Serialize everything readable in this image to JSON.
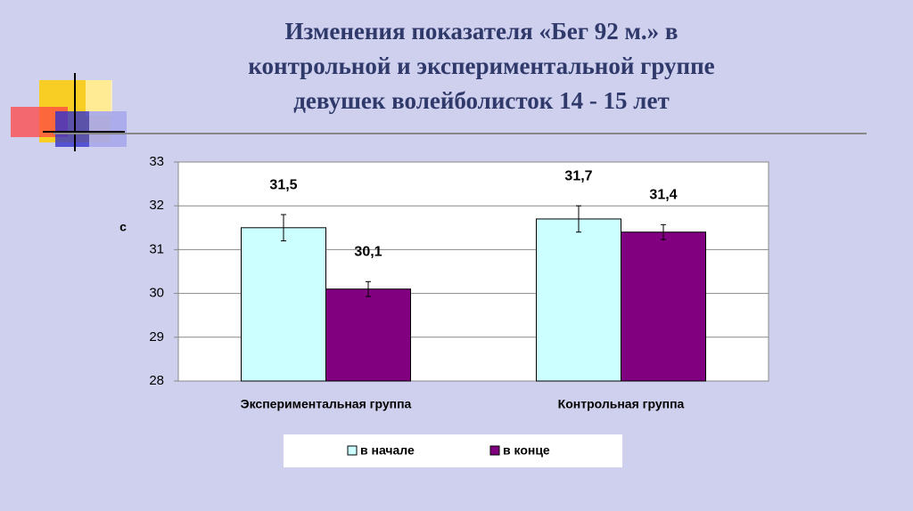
{
  "chart_data": {
    "type": "bar",
    "title": [
      "Изменения показателя «Бег 92 м.»  в",
      "контрольной и экспериментальной группе",
      "девушек волейболисток 14 - 15 лет"
    ],
    "y_label": "с",
    "categories": [
      "Экспериментальная группа",
      "Контрольная группа"
    ],
    "series": [
      {
        "name": "в начале",
        "color": "#ccffff",
        "values": [
          31.5,
          31.7
        ],
        "value_labels": [
          "31,5",
          "31,7"
        ],
        "errors": [
          0.3,
          0.3
        ]
      },
      {
        "name": "в конце",
        "color": "#800080",
        "values": [
          30.1,
          31.4
        ],
        "value_labels": [
          "30,1",
          "31,4"
        ],
        "errors": [
          0.17,
          0.17
        ]
      }
    ],
    "ylim": [
      28,
      33
    ],
    "yticks": [
      28,
      29,
      30,
      31,
      32,
      33
    ],
    "grid": true,
    "legend": "bottom"
  }
}
